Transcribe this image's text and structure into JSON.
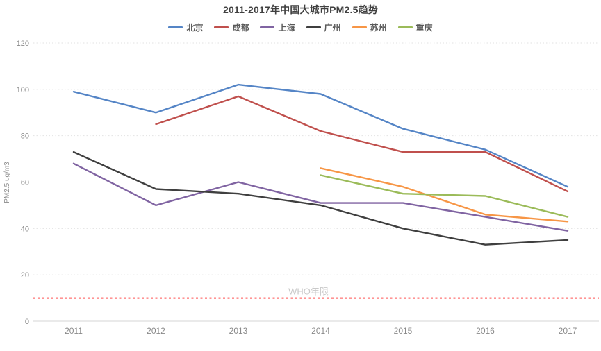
{
  "chart": {
    "title": "2011-2017年中国大城市PM2.5趋势",
    "y_axis_title": "PM2.5 ug/m3",
    "who_label": "WHO年限"
  },
  "colors": {
    "background": "#ffffff",
    "title_text": "#404040",
    "legend_text": "#595959",
    "tick_text": "#8a8a8a",
    "gridline": "#e2e2e2",
    "axis_line": "#d4d4d4",
    "who_line": "#ff5454",
    "who_label_text": "#c9c9c9"
  },
  "chart_data": {
    "type": "line",
    "title": "2011-2017年中国大城市PM2.5趋势",
    "categories": [
      "2011",
      "2012",
      "2013",
      "2014",
      "2015",
      "2016",
      "2017"
    ],
    "xlabel": "",
    "ylabel": "PM2.5 ug/m3",
    "ylim": [
      0,
      120
    ],
    "yticks": [
      0,
      20,
      40,
      60,
      80,
      100,
      120
    ],
    "grid": "horizontal dotted",
    "legend_position": "top",
    "series": [
      {
        "id": "beijing",
        "name": "北京",
        "color": "#5585C6",
        "values": [
          99,
          90,
          102,
          98,
          83,
          74,
          58
        ]
      },
      {
        "id": "chengdu",
        "name": "成都",
        "color": "#C0504D",
        "values": [
          null,
          85,
          97,
          82,
          73,
          73,
          56
        ]
      },
      {
        "id": "shanghai",
        "name": "上海",
        "color": "#8064A2",
        "values": [
          68,
          50,
          60,
          51,
          51,
          45,
          39
        ]
      },
      {
        "id": "guangzhou",
        "name": "广州",
        "color": "#3F3F3F",
        "values": [
          73,
          57,
          55,
          50,
          40,
          33,
          35
        ]
      },
      {
        "id": "suzhou",
        "name": "苏州",
        "color": "#F79646",
        "values": [
          null,
          null,
          null,
          66,
          58,
          46,
          43
        ]
      },
      {
        "id": "chongqing",
        "name": "重庆",
        "color": "#9BBB59",
        "values": [
          null,
          null,
          null,
          63,
          55,
          54,
          45
        ]
      }
    ],
    "reference_line": {
      "label": "WHO年限",
      "value": 10,
      "style": "dashed",
      "color": "#ff5454"
    }
  }
}
